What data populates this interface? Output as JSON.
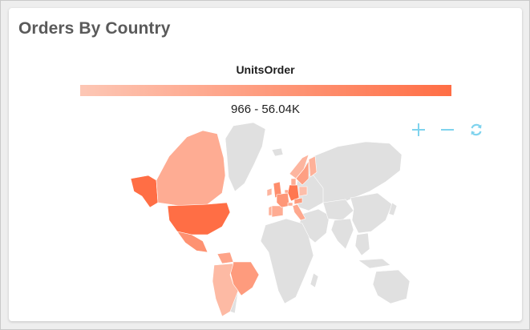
{
  "widget": {
    "title": "Orders By Country"
  },
  "legend": {
    "title": "UnitsOrder",
    "range_label": "966 - 56.04K",
    "color_min": "#fdc7b5",
    "color_max": "#ff6e45"
  },
  "map": {
    "base_color": "#e0e0e0",
    "countries": [
      {
        "name": "United States",
        "level": 1.0
      },
      {
        "name": "Alaska (USA)",
        "level": 1.0
      },
      {
        "name": "Germany",
        "level": 0.9
      },
      {
        "name": "Canada",
        "level": 0.3
      },
      {
        "name": "Brazil",
        "level": 0.5
      },
      {
        "name": "Mexico",
        "level": 0.6
      },
      {
        "name": "Venezuela",
        "level": 0.4
      },
      {
        "name": "Argentina",
        "level": 0.15
      },
      {
        "name": "United Kingdom",
        "level": 0.65
      },
      {
        "name": "France",
        "level": 0.55
      },
      {
        "name": "Sweden",
        "level": 0.45
      },
      {
        "name": "Finland",
        "level": 0.25
      },
      {
        "name": "Norway",
        "level": 0.2
      },
      {
        "name": "Ireland",
        "level": 0.2
      },
      {
        "name": "Spain",
        "level": 0.3
      },
      {
        "name": "Portugal",
        "level": 0.25
      },
      {
        "name": "Italy",
        "level": 0.35
      },
      {
        "name": "Belgium",
        "level": 0.3
      },
      {
        "name": "Denmark",
        "level": 0.3
      },
      {
        "name": "Switzerland",
        "level": 0.3
      },
      {
        "name": "Austria",
        "level": 0.5
      },
      {
        "name": "Poland",
        "level": 0.1
      }
    ]
  },
  "toolbar": [
    {
      "icon": "plus-icon",
      "color": "#7fd3ee"
    },
    {
      "icon": "minus-icon",
      "color": "#7fd3ee"
    },
    {
      "icon": "reset-icon",
      "color": "#7fd3ee"
    }
  ]
}
